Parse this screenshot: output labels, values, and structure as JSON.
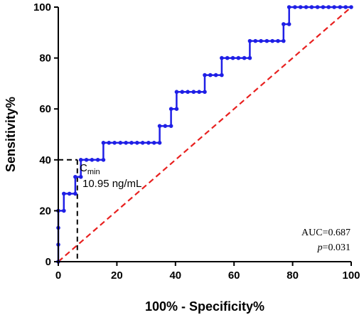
{
  "chart_data": {
    "type": "line",
    "xlabel": "100% - Specificity%",
    "ylabel": "Sensitivity%",
    "xlim": [
      0,
      100
    ],
    "ylim": [
      0,
      100
    ],
    "x_ticks": [
      0,
      20,
      40,
      60,
      80,
      100
    ],
    "y_ticks": [
      0,
      20,
      40,
      60,
      80,
      100
    ],
    "grid": false,
    "roc_points": [
      [
        0,
        0
      ],
      [
        0,
        6.7
      ],
      [
        0,
        13.3
      ],
      [
        0,
        20
      ],
      [
        1.9,
        20
      ],
      [
        1.9,
        26.7
      ],
      [
        3.8,
        26.7
      ],
      [
        5.8,
        26.7
      ],
      [
        5.8,
        33.3
      ],
      [
        7.7,
        33.3
      ],
      [
        7.7,
        40
      ],
      [
        9.6,
        40
      ],
      [
        11.5,
        40
      ],
      [
        13.5,
        40
      ],
      [
        15.4,
        40
      ],
      [
        15.4,
        46.7
      ],
      [
        17.3,
        46.7
      ],
      [
        19.2,
        46.7
      ],
      [
        21.2,
        46.7
      ],
      [
        23.1,
        46.7
      ],
      [
        25,
        46.7
      ],
      [
        26.9,
        46.7
      ],
      [
        28.8,
        46.7
      ],
      [
        30.8,
        46.7
      ],
      [
        32.7,
        46.7
      ],
      [
        34.6,
        46.7
      ],
      [
        34.6,
        53.3
      ],
      [
        36.5,
        53.3
      ],
      [
        38.5,
        53.3
      ],
      [
        38.5,
        60
      ],
      [
        40.4,
        60
      ],
      [
        40.4,
        66.7
      ],
      [
        42.3,
        66.7
      ],
      [
        44.2,
        66.7
      ],
      [
        46.2,
        66.7
      ],
      [
        48.1,
        66.7
      ],
      [
        50,
        66.7
      ],
      [
        50,
        73.3
      ],
      [
        51.9,
        73.3
      ],
      [
        53.8,
        73.3
      ],
      [
        55.8,
        73.3
      ],
      [
        55.8,
        80
      ],
      [
        57.7,
        80
      ],
      [
        59.6,
        80
      ],
      [
        61.5,
        80
      ],
      [
        63.5,
        80
      ],
      [
        65.4,
        80
      ],
      [
        65.4,
        86.7
      ],
      [
        67.3,
        86.7
      ],
      [
        69.2,
        86.7
      ],
      [
        71.2,
        86.7
      ],
      [
        73.1,
        86.7
      ],
      [
        75,
        86.7
      ],
      [
        76.9,
        86.7
      ],
      [
        76.9,
        93.3
      ],
      [
        78.8,
        93.3
      ],
      [
        78.8,
        100
      ],
      [
        80.8,
        100
      ],
      [
        82.7,
        100
      ],
      [
        84.6,
        100
      ],
      [
        86.5,
        100
      ],
      [
        88.5,
        100
      ],
      [
        90.4,
        100
      ],
      [
        92.3,
        100
      ],
      [
        94.2,
        100
      ],
      [
        96.2,
        100
      ],
      [
        98.1,
        100
      ],
      [
        100,
        100
      ]
    ],
    "reference_line": [
      [
        0,
        0
      ],
      [
        100,
        100
      ]
    ],
    "cutoff": {
      "x": 6.5,
      "y": 40
    },
    "cutoff_label_main": "C",
    "cutoff_label_sub": "min",
    "cutoff_value": "10.95 ng/mL",
    "auc_text": "AUC=0.687",
    "p_symbol": "p",
    "p_value": "=0.031",
    "colors": {
      "roc": "#1f1fe6",
      "reference": "#e8201f",
      "cutoff": "#000000"
    }
  }
}
